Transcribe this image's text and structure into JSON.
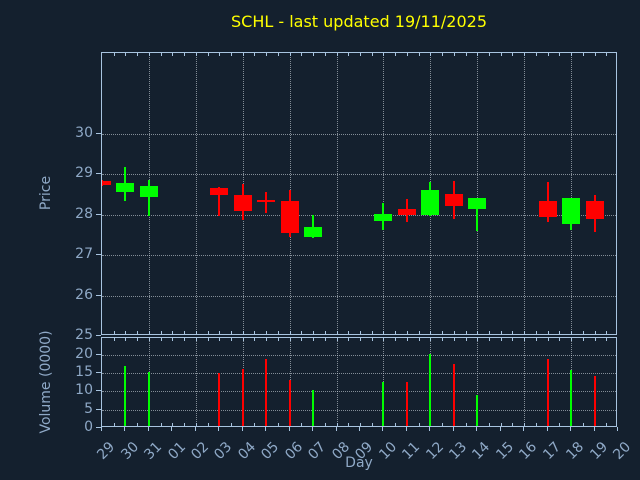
{
  "chart_data": {
    "type": "candlestick",
    "title": "SCHL - last updated 19/11/2025",
    "xlabel": "Day",
    "x_labels": [
      "29",
      "30",
      "31",
      "01",
      "02",
      "03",
      "04",
      "05",
      "06",
      "07",
      "08",
      "09",
      "10",
      "11",
      "12",
      "13",
      "14",
      "15",
      "16",
      "17",
      "18",
      "19",
      "20"
    ],
    "price_axis": {
      "label": "Price",
      "ticks": [
        25,
        26,
        27,
        28,
        29,
        30
      ],
      "ylim": [
        25,
        32
      ]
    },
    "volume_axis": {
      "label": "Volume (0000)",
      "ticks": [
        0,
        5,
        10,
        15,
        20
      ],
      "ylim": [
        0,
        24.5
      ]
    },
    "grid": {
      "vertical_gridline_day_step": 2,
      "style": "dotted",
      "grid_on": true
    },
    "candles": [
      {
        "day": "29",
        "open": 28.84,
        "high": 28.86,
        "low": 28.72,
        "close": 28.73,
        "volume": 0
      },
      {
        "day": "30",
        "open": 28.55,
        "high": 29.17,
        "low": 28.35,
        "close": 28.78,
        "volume": 17.0
      },
      {
        "day": "31",
        "open": 28.43,
        "high": 28.87,
        "low": 27.98,
        "close": 28.7,
        "volume": 15.3
      },
      {
        "day": "03",
        "open": 28.67,
        "high": 28.68,
        "low": 27.98,
        "close": 28.48,
        "volume": 15.1
      },
      {
        "day": "04",
        "open": 28.5,
        "high": 28.75,
        "low": 27.87,
        "close": 28.1,
        "volume": 16.0
      },
      {
        "day": "05",
        "open": 28.37,
        "high": 28.56,
        "low": 28.05,
        "close": 28.34,
        "volume": 18.7
      },
      {
        "day": "06",
        "open": 28.35,
        "high": 28.6,
        "low": 27.45,
        "close": 27.55,
        "volume": 13.0
      },
      {
        "day": "07",
        "open": 27.45,
        "high": 28.0,
        "low": 27.42,
        "close": 27.7,
        "volume": 10.3
      },
      {
        "day": "10",
        "open": 27.85,
        "high": 28.28,
        "low": 27.62,
        "close": 28.03,
        "volume": 12.5
      },
      {
        "day": "11",
        "open": 28.14,
        "high": 28.38,
        "low": 27.82,
        "close": 28.0,
        "volume": 12.4
      },
      {
        "day": "12",
        "open": 28.0,
        "high": 28.82,
        "low": 27.98,
        "close": 28.6,
        "volume": 20.2
      },
      {
        "day": "13",
        "open": 28.51,
        "high": 28.83,
        "low": 27.89,
        "close": 28.22,
        "volume": 17.5
      },
      {
        "day": "14",
        "open": 28.13,
        "high": 28.41,
        "low": 27.6,
        "close": 28.41,
        "volume": 9.0
      },
      {
        "day": "17",
        "open": 28.33,
        "high": 28.81,
        "low": 27.83,
        "close": 27.95,
        "volume": 18.7
      },
      {
        "day": "18",
        "open": 27.76,
        "high": 28.41,
        "low": 27.62,
        "close": 28.41,
        "volume": 15.7
      },
      {
        "day": "19",
        "open": 28.33,
        "high": 28.49,
        "low": 27.56,
        "close": 27.89,
        "volume": 14.2
      }
    ]
  },
  "colors": {
    "background": "#14202e",
    "title": "#ffff00",
    "bullish": "#00ff00",
    "bearish": "#ff0000",
    "axis_text": "#8fa9c7",
    "spine": "#a8c4e0",
    "grid": "#c8d0d8"
  }
}
